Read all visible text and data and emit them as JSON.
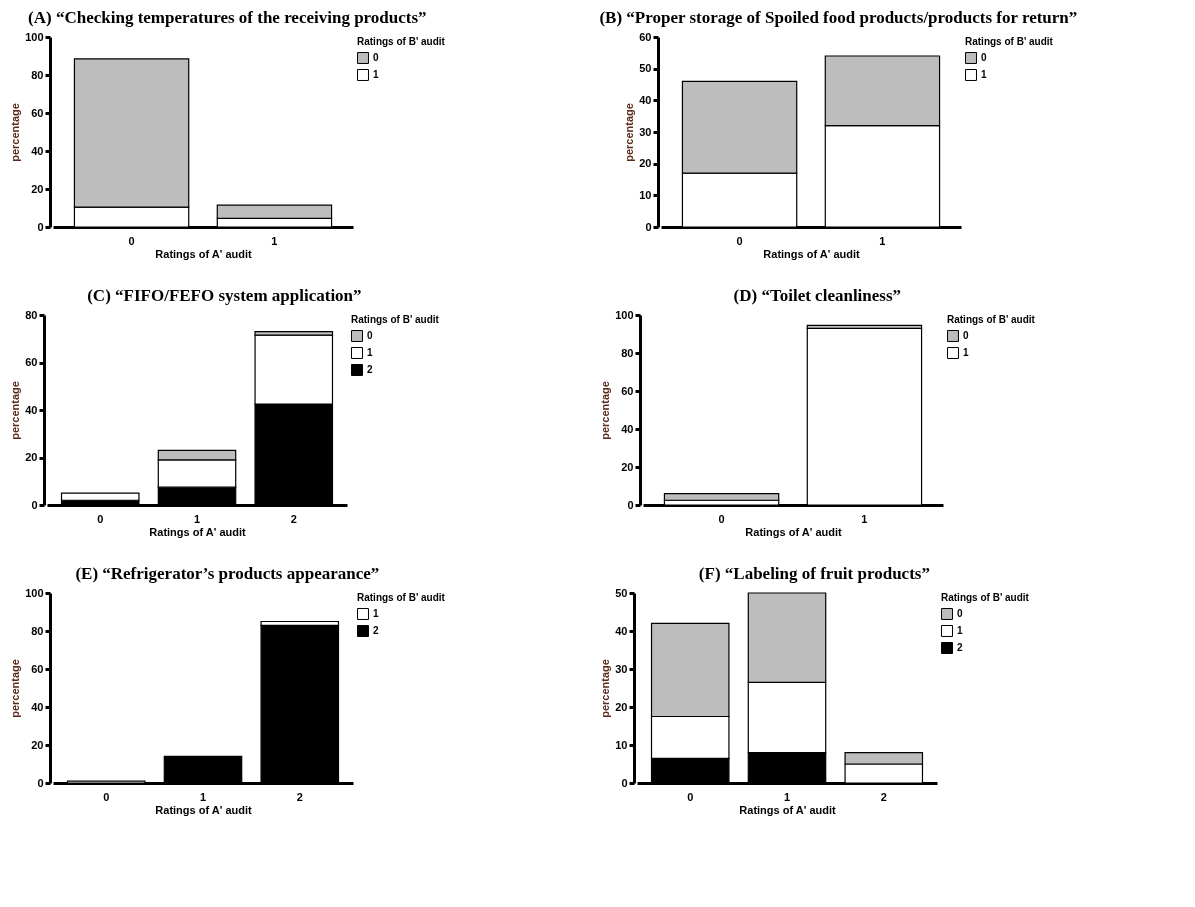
{
  "chart_data": [
    {
      "type": "bar",
      "stacked": true,
      "title": "(A) “Checking temperatures of the receiving products”",
      "xlabel": "Ratings of A' audit",
      "ylabel": "percentage",
      "legend_title": "Ratings of B' audit",
      "legend": "top right",
      "categories": [
        "0",
        "1"
      ],
      "ylim": [
        0,
        100
      ],
      "yticks": [
        0,
        20,
        40,
        60,
        80,
        100
      ],
      "series": [
        {
          "name": "1",
          "color": "#ffffff",
          "values": [
            10.5,
            4.5
          ]
        },
        {
          "name": "0",
          "color": "#bdbdbd",
          "values": [
            78,
            7
          ]
        }
      ]
    },
    {
      "type": "bar",
      "stacked": true,
      "title": "(B) “Proper storage of Spoiled food products/products for return”",
      "xlabel": "Ratings of A' audit",
      "ylabel": "percentage",
      "legend_title": "Ratings of B' audit",
      "legend": "top right",
      "categories": [
        "0",
        "1"
      ],
      "ylim": [
        0,
        60
      ],
      "yticks": [
        0,
        10,
        20,
        30,
        40,
        50,
        60
      ],
      "series": [
        {
          "name": "1",
          "color": "#ffffff",
          "values": [
            17,
            32
          ]
        },
        {
          "name": "0",
          "color": "#bdbdbd",
          "values": [
            29,
            22
          ]
        }
      ]
    },
    {
      "type": "bar",
      "stacked": true,
      "title": "(C) “FIFO/FEFO system application”",
      "xlabel": "Ratings of A' audit",
      "ylabel": "percentage",
      "legend_title": "Ratings of B' audit",
      "legend": "top right",
      "categories": [
        "0",
        "1",
        "2"
      ],
      "ylim": [
        0,
        80
      ],
      "yticks": [
        0,
        20,
        40,
        60,
        80
      ],
      "series": [
        {
          "name": "2",
          "color": "#000000",
          "values": [
            2,
            7.5,
            42.5
          ]
        },
        {
          "name": "1",
          "color": "#ffffff",
          "values": [
            3,
            11.5,
            29
          ]
        },
        {
          "name": "0",
          "color": "#bdbdbd",
          "values": [
            null,
            4,
            1.5
          ]
        }
      ]
    },
    {
      "type": "bar",
      "stacked": true,
      "title": "(D) “Toilet cleanliness”",
      "xlabel": "Ratings of A' audit",
      "ylabel": "percentage",
      "legend_title": "Ratings of B' audit",
      "legend": "top right",
      "categories": [
        "0",
        "1"
      ],
      "ylim": [
        0,
        100
      ],
      "yticks": [
        0,
        20,
        40,
        60,
        80,
        100
      ],
      "series": [
        {
          "name": "1",
          "color": "#ffffff",
          "values": [
            2.5,
            93
          ]
        },
        {
          "name": "0",
          "color": "#bdbdbd",
          "values": [
            3.5,
            1.5
          ]
        }
      ]
    },
    {
      "type": "bar",
      "stacked": true,
      "title": "(E) “Refrigerator’s products appearance”",
      "xlabel": "Ratings of A' audit",
      "ylabel": "percentage",
      "legend_title": "Ratings of B' audit",
      "legend": "top right",
      "categories": [
        "0",
        "1",
        "2"
      ],
      "ylim": [
        0,
        100
      ],
      "yticks": [
        0,
        20,
        40,
        60,
        80,
        100
      ],
      "series": [
        {
          "name": "2",
          "color": "#000000",
          "values": [
            null,
            14,
            83
          ]
        },
        {
          "name": "1",
          "color": "#ffffff",
          "values": [
            1,
            null,
            2
          ]
        }
      ]
    },
    {
      "type": "bar",
      "stacked": true,
      "title": "(F) “Labeling of fruit products”",
      "xlabel": "Ratings of A' audit",
      "ylabel": "percentage",
      "legend_title": "Ratings of B' audit",
      "legend": "top right",
      "categories": [
        "0",
        "1",
        "2"
      ],
      "ylim": [
        0,
        50
      ],
      "yticks": [
        0,
        10,
        20,
        30,
        40,
        50
      ],
      "series": [
        {
          "name": "2",
          "color": "#000000",
          "values": [
            6.5,
            8,
            null
          ]
        },
        {
          "name": "1",
          "color": "#ffffff",
          "values": [
            11,
            18.5,
            5
          ]
        },
        {
          "name": "0",
          "color": "#bdbdbd",
          "values": [
            24.5,
            23.5,
            3
          ]
        }
      ]
    }
  ]
}
